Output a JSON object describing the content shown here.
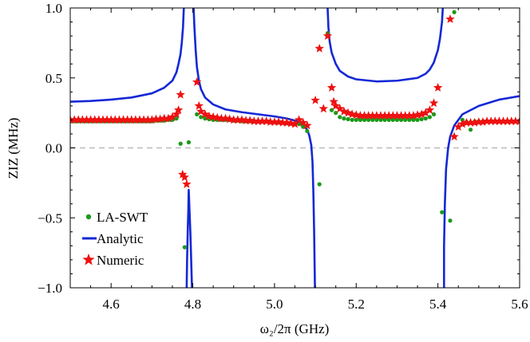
{
  "chart_data": {
    "type": "scatter",
    "title": "",
    "xlabel": "ω₂/2π (GHz)",
    "ylabel": "ZIZ (MHz)",
    "xlim": [
      4.5,
      5.6
    ],
    "ylim": [
      -1.0,
      1.0
    ],
    "xticks": [
      "4.6",
      "4.8",
      "5.0",
      "5.2",
      "5.4",
      "5.6"
    ],
    "yticks": [
      "-1.0",
      "-0.5",
      "0.0",
      "0.5",
      "1.0"
    ],
    "zero_line": true,
    "legend_position": "bottom-left",
    "poles": [
      4.783,
      5.093,
      5.417
    ],
    "colors": {
      "la_swt": "#1a9a1a",
      "analytic": "#1428d6",
      "numeric": "#ee1111",
      "zero_line": "#bbbbbb"
    },
    "series": [
      {
        "name": "LA-SWT",
        "style": "dots",
        "points": [
          [
            4.5,
            0.19
          ],
          [
            4.51,
            0.19
          ],
          [
            4.52,
            0.19
          ],
          [
            4.53,
            0.19
          ],
          [
            4.54,
            0.19
          ],
          [
            4.55,
            0.19
          ],
          [
            4.56,
            0.19
          ],
          [
            4.57,
            0.19
          ],
          [
            4.58,
            0.19
          ],
          [
            4.59,
            0.19
          ],
          [
            4.6,
            0.19
          ],
          [
            4.61,
            0.19
          ],
          [
            4.62,
            0.19
          ],
          [
            4.63,
            0.19
          ],
          [
            4.64,
            0.19
          ],
          [
            4.65,
            0.19
          ],
          [
            4.66,
            0.19
          ],
          [
            4.67,
            0.19
          ],
          [
            4.68,
            0.19
          ],
          [
            4.69,
            0.19
          ],
          [
            4.7,
            0.19
          ],
          [
            4.71,
            0.195
          ],
          [
            4.72,
            0.195
          ],
          [
            4.73,
            0.195
          ],
          [
            4.74,
            0.2
          ],
          [
            4.75,
            0.2
          ],
          [
            4.76,
            0.21
          ],
          [
            4.77,
            0.03
          ],
          [
            4.78,
            -0.71
          ],
          [
            4.79,
            0.04
          ],
          [
            4.81,
            0.24
          ],
          [
            4.82,
            0.22
          ],
          [
            4.83,
            0.21
          ],
          [
            4.84,
            0.205
          ],
          [
            4.85,
            0.2
          ],
          [
            4.86,
            0.2
          ],
          [
            4.87,
            0.2
          ],
          [
            4.88,
            0.2
          ],
          [
            4.89,
            0.2
          ],
          [
            4.9,
            0.195
          ],
          [
            4.91,
            0.195
          ],
          [
            4.92,
            0.19
          ],
          [
            4.93,
            0.19
          ],
          [
            4.94,
            0.19
          ],
          [
            4.95,
            0.19
          ],
          [
            4.96,
            0.19
          ],
          [
            4.97,
            0.19
          ],
          [
            4.98,
            0.19
          ],
          [
            4.99,
            0.185
          ],
          [
            5.0,
            0.185
          ],
          [
            5.01,
            0.18
          ],
          [
            5.02,
            0.18
          ],
          [
            5.03,
            0.175
          ],
          [
            5.04,
            0.175
          ],
          [
            5.05,
            0.17
          ],
          [
            5.06,
            0.17
          ],
          [
            5.07,
            0.15
          ],
          [
            5.08,
            0.12
          ],
          [
            5.11,
            -0.26
          ],
          [
            5.13,
            0.82
          ],
          [
            5.14,
            0.27
          ],
          [
            5.15,
            0.25
          ],
          [
            5.16,
            0.22
          ],
          [
            5.17,
            0.21
          ],
          [
            5.18,
            0.205
          ],
          [
            5.19,
            0.2
          ],
          [
            5.2,
            0.2
          ],
          [
            5.21,
            0.2
          ],
          [
            5.22,
            0.2
          ],
          [
            5.23,
            0.2
          ],
          [
            5.24,
            0.2
          ],
          [
            5.25,
            0.2
          ],
          [
            5.26,
            0.2
          ],
          [
            5.27,
            0.2
          ],
          [
            5.28,
            0.2
          ],
          [
            5.29,
            0.2
          ],
          [
            5.3,
            0.2
          ],
          [
            5.31,
            0.2
          ],
          [
            5.32,
            0.2
          ],
          [
            5.33,
            0.2
          ],
          [
            5.34,
            0.2
          ],
          [
            5.35,
            0.2
          ],
          [
            5.36,
            0.205
          ],
          [
            5.37,
            0.21
          ],
          [
            5.38,
            0.22
          ],
          [
            5.39,
            0.24
          ],
          [
            5.41,
            -0.46
          ],
          [
            5.43,
            -0.52
          ],
          [
            5.44,
            0.97
          ],
          [
            5.46,
            0.2
          ],
          [
            5.47,
            0.185
          ],
          [
            5.48,
            0.13
          ],
          [
            5.49,
            0.19
          ],
          [
            5.5,
            0.19
          ],
          [
            5.51,
            0.19
          ],
          [
            5.52,
            0.19
          ],
          [
            5.53,
            0.19
          ],
          [
            5.54,
            0.19
          ],
          [
            5.55,
            0.19
          ],
          [
            5.56,
            0.19
          ],
          [
            5.57,
            0.19
          ],
          [
            5.58,
            0.19
          ],
          [
            5.59,
            0.19
          ],
          [
            5.6,
            0.19
          ]
        ]
      },
      {
        "name": "Analytic",
        "style": "line",
        "points": [
          [
            4.5,
            0.33
          ],
          [
            4.55,
            0.335
          ],
          [
            4.6,
            0.345
          ],
          [
            4.65,
            0.36
          ],
          [
            4.7,
            0.39
          ],
          [
            4.73,
            0.43
          ],
          [
            4.75,
            0.48
          ],
          [
            4.76,
            0.54
          ],
          [
            4.765,
            0.6
          ],
          [
            4.77,
            0.67
          ],
          [
            4.773,
            0.75
          ],
          [
            4.776,
            0.86
          ],
          [
            4.778,
            1.0
          ],
          null,
          [
            4.785,
            -1.0
          ],
          [
            4.786,
            -0.8
          ],
          [
            4.788,
            -0.55
          ],
          [
            4.789,
            -0.45
          ],
          [
            4.79,
            -0.3
          ],
          [
            4.792,
            -0.45
          ],
          [
            4.794,
            -0.6
          ],
          [
            4.796,
            -0.8
          ],
          [
            4.798,
            -1.0
          ],
          null,
          [
            4.802,
            1.0
          ],
          [
            4.804,
            0.86
          ],
          [
            4.807,
            0.7
          ],
          [
            4.81,
            0.58
          ],
          [
            4.815,
            0.48
          ],
          [
            4.82,
            0.42
          ],
          [
            4.83,
            0.36
          ],
          [
            4.85,
            0.31
          ],
          [
            4.88,
            0.275
          ],
          [
            4.92,
            0.255
          ],
          [
            4.96,
            0.24
          ],
          [
            5.0,
            0.225
          ],
          [
            5.03,
            0.21
          ],
          [
            5.05,
            0.195
          ],
          [
            5.06,
            0.185
          ],
          [
            5.07,
            0.165
          ],
          [
            5.08,
            0.13
          ],
          [
            5.085,
            0.09
          ],
          [
            5.09,
            0.02
          ],
          [
            5.093,
            -0.1
          ],
          [
            5.095,
            -0.3
          ],
          [
            5.097,
            -0.6
          ],
          [
            5.099,
            -1.0
          ],
          null,
          [
            5.13,
            1.0
          ],
          [
            5.132,
            0.86
          ],
          [
            5.135,
            0.76
          ],
          [
            5.14,
            0.68
          ],
          [
            5.15,
            0.6
          ],
          [
            5.16,
            0.55
          ],
          [
            5.18,
            0.51
          ],
          [
            5.2,
            0.49
          ],
          [
            5.25,
            0.475
          ],
          [
            5.3,
            0.48
          ],
          [
            5.35,
            0.5
          ],
          [
            5.37,
            0.53
          ],
          [
            5.38,
            0.56
          ],
          [
            5.39,
            0.61
          ],
          [
            5.4,
            0.7
          ],
          [
            5.405,
            0.78
          ],
          [
            5.41,
            0.9
          ],
          [
            5.412,
            1.0
          ],
          null,
          [
            5.415,
            -1.0
          ],
          [
            5.415,
            -0.7
          ],
          [
            5.417,
            -0.4
          ],
          [
            5.42,
            -0.15
          ],
          [
            5.425,
            0.0
          ],
          [
            5.43,
            0.08
          ],
          [
            5.44,
            0.16
          ],
          [
            5.46,
            0.24
          ],
          [
            5.5,
            0.3
          ],
          [
            5.55,
            0.345
          ],
          [
            5.6,
            0.37
          ]
        ]
      },
      {
        "name": "Numeric",
        "style": "stars",
        "points": [
          [
            4.5,
            0.2
          ],
          [
            4.51,
            0.2
          ],
          [
            4.52,
            0.2
          ],
          [
            4.53,
            0.2
          ],
          [
            4.54,
            0.2
          ],
          [
            4.55,
            0.2
          ],
          [
            4.56,
            0.2
          ],
          [
            4.57,
            0.2
          ],
          [
            4.58,
            0.2
          ],
          [
            4.59,
            0.2
          ],
          [
            4.6,
            0.2
          ],
          [
            4.61,
            0.2
          ],
          [
            4.62,
            0.2
          ],
          [
            4.63,
            0.2
          ],
          [
            4.64,
            0.2
          ],
          [
            4.65,
            0.2
          ],
          [
            4.66,
            0.2
          ],
          [
            4.67,
            0.2
          ],
          [
            4.68,
            0.2
          ],
          [
            4.69,
            0.2
          ],
          [
            4.7,
            0.2
          ],
          [
            4.71,
            0.205
          ],
          [
            4.72,
            0.205
          ],
          [
            4.73,
            0.21
          ],
          [
            4.74,
            0.21
          ],
          [
            4.75,
            0.22
          ],
          [
            4.76,
            0.24
          ],
          [
            4.765,
            0.27
          ],
          [
            4.77,
            0.38
          ],
          [
            4.775,
            -0.19
          ],
          [
            4.78,
            -0.21
          ],
          [
            4.785,
            -0.26
          ],
          [
            4.81,
            0.47
          ],
          [
            4.815,
            0.3
          ],
          [
            4.82,
            0.26
          ],
          [
            4.83,
            0.24
          ],
          [
            4.84,
            0.225
          ],
          [
            4.85,
            0.22
          ],
          [
            4.86,
            0.215
          ],
          [
            4.87,
            0.21
          ],
          [
            4.88,
            0.21
          ],
          [
            4.89,
            0.205
          ],
          [
            4.9,
            0.2
          ],
          [
            4.91,
            0.2
          ],
          [
            4.92,
            0.2
          ],
          [
            4.93,
            0.195
          ],
          [
            4.94,
            0.195
          ],
          [
            4.95,
            0.19
          ],
          [
            4.96,
            0.19
          ],
          [
            4.97,
            0.19
          ],
          [
            4.98,
            0.19
          ],
          [
            4.99,
            0.185
          ],
          [
            5.0,
            0.185
          ],
          [
            5.01,
            0.185
          ],
          [
            5.02,
            0.18
          ],
          [
            5.03,
            0.18
          ],
          [
            5.04,
            0.175
          ],
          [
            5.05,
            0.17
          ],
          [
            5.06,
            0.2
          ],
          [
            5.07,
            0.18
          ],
          [
            5.08,
            0.16
          ],
          [
            5.1,
            0.34
          ],
          [
            5.11,
            0.71
          ],
          [
            5.12,
            0.28
          ],
          [
            5.13,
            0.8
          ],
          [
            5.14,
            0.43
          ],
          [
            5.145,
            0.33
          ],
          [
            5.15,
            0.3
          ],
          [
            5.16,
            0.28
          ],
          [
            5.17,
            0.26
          ],
          [
            5.18,
            0.25
          ],
          [
            5.19,
            0.24
          ],
          [
            5.2,
            0.235
          ],
          [
            5.21,
            0.23
          ],
          [
            5.22,
            0.23
          ],
          [
            5.23,
            0.23
          ],
          [
            5.24,
            0.23
          ],
          [
            5.25,
            0.23
          ],
          [
            5.26,
            0.23
          ],
          [
            5.27,
            0.23
          ],
          [
            5.28,
            0.23
          ],
          [
            5.29,
            0.23
          ],
          [
            5.3,
            0.23
          ],
          [
            5.31,
            0.23
          ],
          [
            5.32,
            0.23
          ],
          [
            5.33,
            0.23
          ],
          [
            5.34,
            0.23
          ],
          [
            5.35,
            0.235
          ],
          [
            5.36,
            0.24
          ],
          [
            5.37,
            0.25
          ],
          [
            5.38,
            0.27
          ],
          [
            5.39,
            0.32
          ],
          [
            5.4,
            0.43
          ],
          [
            5.43,
            0.92
          ],
          [
            5.44,
            0.08
          ],
          [
            5.45,
            0.15
          ],
          [
            5.46,
            0.17
          ],
          [
            5.47,
            0.18
          ],
          [
            5.48,
            0.18
          ],
          [
            5.49,
            0.18
          ],
          [
            5.5,
            0.185
          ],
          [
            5.51,
            0.185
          ],
          [
            5.52,
            0.19
          ],
          [
            5.53,
            0.19
          ],
          [
            5.54,
            0.19
          ],
          [
            5.55,
            0.19
          ],
          [
            5.56,
            0.19
          ],
          [
            5.57,
            0.19
          ],
          [
            5.58,
            0.19
          ],
          [
            5.59,
            0.19
          ],
          [
            5.6,
            0.19
          ]
        ]
      }
    ]
  }
}
